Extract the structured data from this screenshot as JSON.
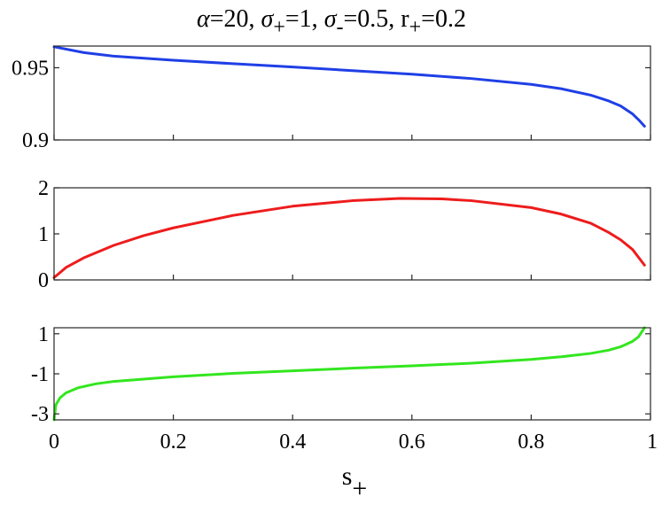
{
  "title": {
    "segments": [
      {
        "t": "α",
        "style": "italic"
      },
      {
        "t": "=20, "
      },
      {
        "t": "σ",
        "style": "italic"
      },
      {
        "t": "+",
        "shift": "sub"
      },
      {
        "t": "=1, "
      },
      {
        "t": "σ",
        "style": "italic"
      },
      {
        "t": "-",
        "shift": "sub"
      },
      {
        "t": "=0.5, r"
      },
      {
        "t": "+",
        "shift": "sub"
      },
      {
        "t": "=0.2"
      }
    ]
  },
  "xlabel": {
    "main": "s",
    "sub": "+"
  },
  "chart_data": [
    {
      "type": "line",
      "color": "#1f3fe6",
      "xlim": [
        0,
        1
      ],
      "ylim": [
        0.9,
        0.965
      ],
      "yticks": [
        0.9,
        0.95
      ],
      "ytick_labels": [
        "0.9",
        "0.95"
      ],
      "xticks": [
        0,
        0.2,
        0.4,
        0.6,
        0.8,
        1
      ],
      "x": [
        0,
        0.05,
        0.1,
        0.2,
        0.3,
        0.4,
        0.5,
        0.6,
        0.7,
        0.8,
        0.85,
        0.9,
        0.93,
        0.95,
        0.97,
        0.98,
        0.99
      ],
      "y": [
        0.9645,
        0.9605,
        0.958,
        0.9552,
        0.9528,
        0.9505,
        0.948,
        0.9455,
        0.9425,
        0.9385,
        0.9355,
        0.931,
        0.927,
        0.9235,
        0.918,
        0.914,
        0.9095
      ]
    },
    {
      "type": "line",
      "color": "#ee1c1c",
      "xlim": [
        0,
        1
      ],
      "ylim": [
        0,
        2
      ],
      "yticks": [
        0,
        1,
        2
      ],
      "ytick_labels": [
        "0",
        "1",
        "2"
      ],
      "xticks": [
        0,
        0.2,
        0.4,
        0.6,
        0.8,
        1
      ],
      "x": [
        0,
        0.02,
        0.05,
        0.1,
        0.15,
        0.2,
        0.3,
        0.4,
        0.5,
        0.58,
        0.65,
        0.7,
        0.8,
        0.85,
        0.9,
        0.93,
        0.95,
        0.97,
        0.99
      ],
      "y": [
        0.05,
        0.27,
        0.48,
        0.75,
        0.96,
        1.13,
        1.4,
        1.6,
        1.72,
        1.77,
        1.76,
        1.72,
        1.57,
        1.43,
        1.23,
        1.03,
        0.87,
        0.66,
        0.32
      ]
    },
    {
      "type": "line",
      "color": "#33e61f",
      "xlim": [
        0,
        1
      ],
      "ylim": [
        -3.3,
        1.3
      ],
      "yticks": [
        -3,
        -1,
        1
      ],
      "ytick_labels": [
        "-3",
        "-1",
        "1"
      ],
      "xticks": [
        0,
        0.2,
        0.4,
        0.6,
        0.8,
        1
      ],
      "xtick_labels": [
        "0",
        "0.2",
        "0.4",
        "0.6",
        "0.8",
        "1"
      ],
      "x": [
        0,
        0.003,
        0.01,
        0.02,
        0.04,
        0.07,
        0.1,
        0.2,
        0.3,
        0.4,
        0.5,
        0.6,
        0.7,
        0.8,
        0.85,
        0.9,
        0.93,
        0.95,
        0.97,
        0.98,
        0.99
      ],
      "y": [
        -3.3,
        -2.55,
        -2.2,
        -1.95,
        -1.7,
        -1.5,
        -1.38,
        -1.15,
        -0.98,
        -0.85,
        -0.72,
        -0.6,
        -0.47,
        -0.28,
        -0.15,
        0.02,
        0.18,
        0.35,
        0.62,
        0.85,
        1.3
      ]
    }
  ]
}
